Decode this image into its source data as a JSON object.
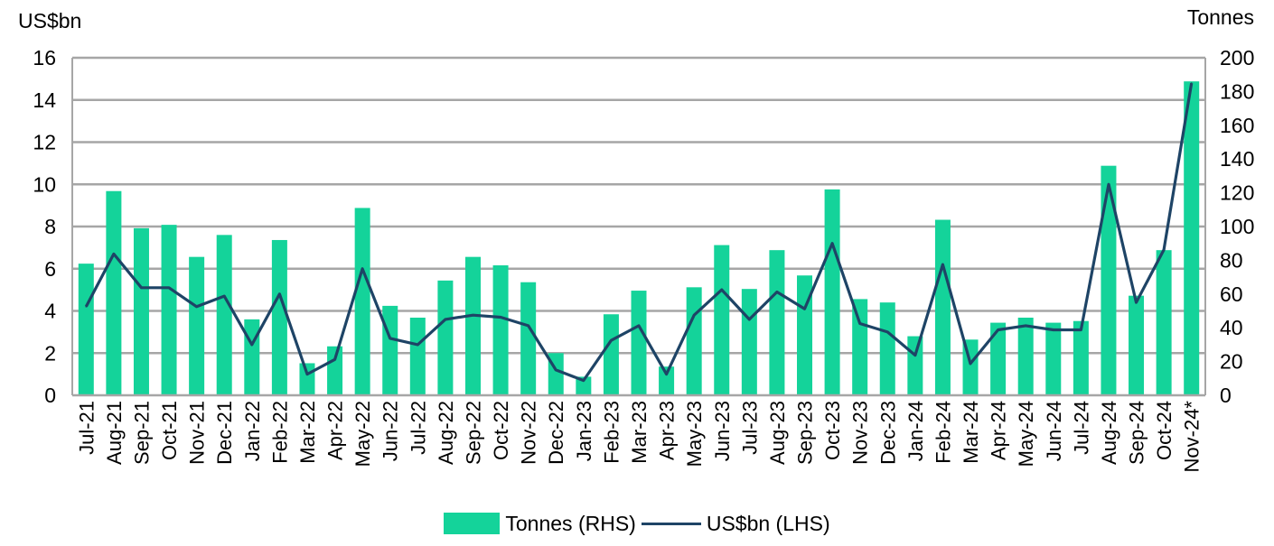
{
  "colors": {
    "bars": "#14D39A",
    "line": "#1E4466",
    "grid": "#A6A6A6"
  },
  "axes": {
    "left_unit": "US$bn",
    "right_unit": "Tonnes",
    "left_ticks": [
      "0",
      "2",
      "4",
      "6",
      "8",
      "10",
      "12",
      "14",
      "16"
    ],
    "right_ticks": [
      "0",
      "20",
      "40",
      "60",
      "80",
      "100",
      "120",
      "140",
      "160",
      "180",
      "200"
    ]
  },
  "legend": {
    "bars_label": "Tonnes (RHS)",
    "line_label": "US$bn (LHS)"
  },
  "chart_data": {
    "type": "bar",
    "categories": [
      "Jul-21",
      "Aug-21",
      "Sep-21",
      "Oct-21",
      "Nov-21",
      "Dec-21",
      "Jan-22",
      "Feb-22",
      "Mar-22",
      "Apr-22",
      "May-22",
      "Jun-22",
      "Jul-22",
      "Aug-22",
      "Sep-22",
      "Oct-22",
      "Nov-22",
      "Dec-22",
      "Jan-23",
      "Feb-23",
      "Mar-23",
      "Apr-23",
      "May-23",
      "Jun-23",
      "Jul-23",
      "Aug-23",
      "Sep-23",
      "Oct-23",
      "Nov-23",
      "Dec-23",
      "Jan-24",
      "Feb-24",
      "Mar-24",
      "Apr-24",
      "May-24",
      "Jun-24",
      "Jul-24",
      "Aug-24",
      "Sep-24",
      "Oct-24",
      "Nov-24*"
    ],
    "series": [
      {
        "name": "Tonnes (RHS)",
        "type": "bar",
        "axis": "right",
        "values": [
          78,
          121,
          99,
          101,
          82,
          95,
          45,
          92,
          19,
          29,
          111,
          53,
          46,
          68,
          82,
          77,
          67,
          25,
          11,
          48,
          62,
          17,
          64,
          89,
          63,
          86,
          71,
          122,
          57,
          55,
          35,
          104,
          33,
          43,
          46,
          43,
          44,
          136,
          59,
          86,
          186
        ]
      },
      {
        "name": "US$bn (LHS)",
        "type": "line",
        "axis": "left",
        "values": [
          4.2,
          6.7,
          5.1,
          5.1,
          4.2,
          4.7,
          2.4,
          4.8,
          1.0,
          1.7,
          6.0,
          2.7,
          2.4,
          3.6,
          3.8,
          3.7,
          3.3,
          1.2,
          0.7,
          2.6,
          3.3,
          1.0,
          3.8,
          5.0,
          3.6,
          4.9,
          4.1,
          7.2,
          3.4,
          3.0,
          1.9,
          6.2,
          1.5,
          3.1,
          3.3,
          3.1,
          3.1,
          10.0,
          4.4,
          6.9,
          14.8
        ]
      }
    ],
    "ylim_left": [
      0,
      16
    ],
    "ylim_right": [
      0,
      200
    ],
    "grid": true,
    "legend_position": "bottom-center"
  }
}
